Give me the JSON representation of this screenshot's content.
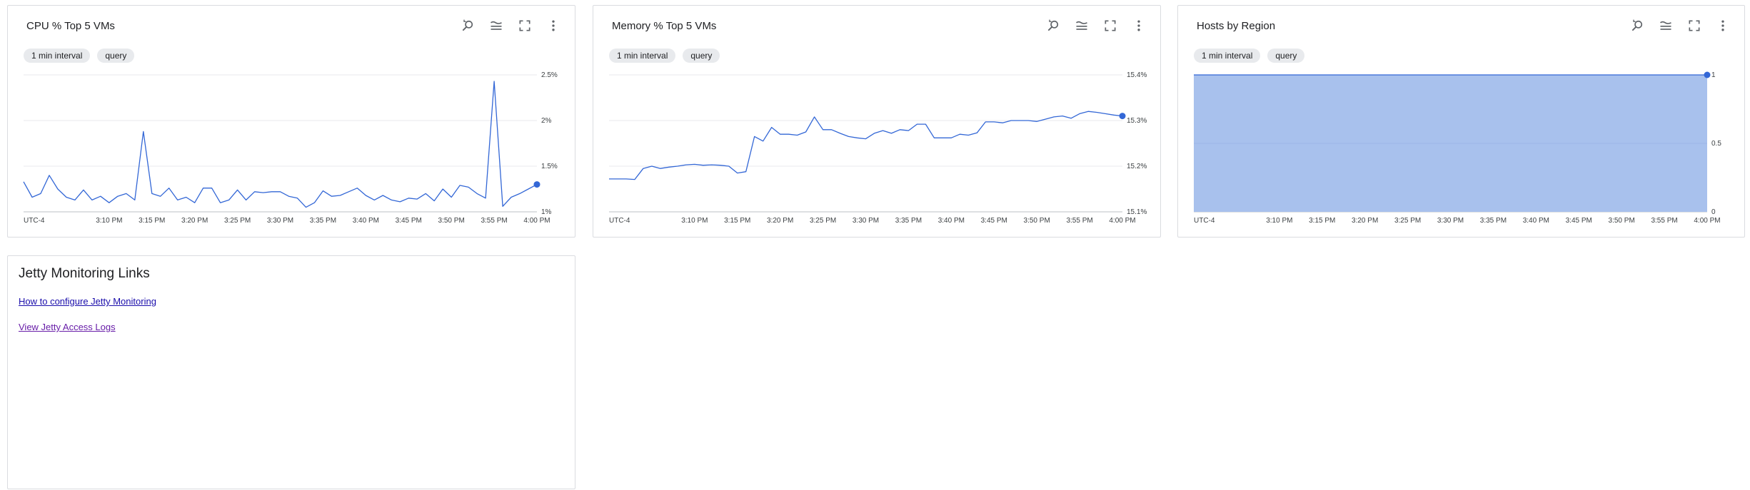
{
  "colors": {
    "line": "#3367d6",
    "area_fill": "#a8c1ed",
    "grid": "#e8eaed",
    "link_visited": "#681da8",
    "link": "#1a0dab"
  },
  "icons": [
    "zoom-reset-icon",
    "legend-icon",
    "fullscreen-icon",
    "more-vert-icon"
  ],
  "x_tick_labels": [
    "3:10 PM",
    "3:15 PM",
    "3:20 PM",
    "3:25 PM",
    "3:30 PM",
    "3:35 PM",
    "3:40 PM",
    "3:45 PM",
    "3:50 PM",
    "3:55 PM",
    "4:00 PM"
  ],
  "charts": [
    {
      "title": "CPU % Top 5 VMs",
      "chips": [
        "1 min interval",
        "query"
      ],
      "timezone": "UTC-4"
    },
    {
      "title": "Memory % Top 5 VMs",
      "chips": [
        "1 min interval",
        "query"
      ],
      "timezone": "UTC-4"
    },
    {
      "title": "Hosts by Region",
      "chips": [
        "1 min interval",
        "query"
      ],
      "timezone": "UTC-4"
    }
  ],
  "chart_data": [
    {
      "type": "line",
      "title": "CPU % Top 5 VMs",
      "x_start": "3:00 PM",
      "x_end": "4:00 PM",
      "x_ticks": [
        "3:10 PM",
        "3:15 PM",
        "3:20 PM",
        "3:25 PM",
        "3:30 PM",
        "3:35 PM",
        "3:40 PM",
        "3:45 PM",
        "3:50 PM",
        "3:55 PM",
        "4:00 PM"
      ],
      "y_ticks": [
        "1%",
        "1.5%",
        "2%",
        "2.5%"
      ],
      "ylim": [
        1,
        2.5
      ],
      "grid": true,
      "series": [
        {
          "values": [
            1.33,
            1.16,
            1.2,
            1.4,
            1.25,
            1.16,
            1.13,
            1.24,
            1.13,
            1.17,
            1.1,
            1.17,
            1.2,
            1.13,
            1.88,
            1.2,
            1.17,
            1.26,
            1.13,
            1.16,
            1.1,
            1.26,
            1.26,
            1.1,
            1.13,
            1.24,
            1.13,
            1.22,
            1.21,
            1.22,
            1.22,
            1.17,
            1.15,
            1.05,
            1.1,
            1.23,
            1.17,
            1.18,
            1.22,
            1.26,
            1.18,
            1.13,
            1.18,
            1.13,
            1.11,
            1.15,
            1.14,
            1.2,
            1.12,
            1.25,
            1.16,
            1.29,
            1.27,
            1.2,
            1.15,
            2.43,
            1.06,
            1.16,
            1.2,
            1.25,
            1.3
          ]
        }
      ]
    },
    {
      "type": "line",
      "title": "Memory % Top 5 VMs",
      "x_start": "3:00 PM",
      "x_end": "4:00 PM",
      "x_ticks": [
        "3:10 PM",
        "3:15 PM",
        "3:20 PM",
        "3:25 PM",
        "3:30 PM",
        "3:35 PM",
        "3:40 PM",
        "3:45 PM",
        "3:50 PM",
        "3:55 PM",
        "4:00 PM"
      ],
      "y_ticks": [
        "15.1%",
        "15.2%",
        "15.3%",
        "15.4%"
      ],
      "ylim": [
        15.1,
        15.4
      ],
      "grid": true,
      "series": [
        {
          "values": [
            15.172,
            15.172,
            15.172,
            15.171,
            15.195,
            15.2,
            15.195,
            15.198,
            15.2,
            15.203,
            15.204,
            15.202,
            15.203,
            15.202,
            15.2,
            15.185,
            15.188,
            15.265,
            15.255,
            15.285,
            15.27,
            15.27,
            15.268,
            15.275,
            15.308,
            15.28,
            15.28,
            15.272,
            15.265,
            15.262,
            15.26,
            15.272,
            15.278,
            15.272,
            15.28,
            15.278,
            15.292,
            15.292,
            15.262,
            15.262,
            15.262,
            15.27,
            15.268,
            15.273,
            15.297,
            15.297,
            15.295,
            15.3,
            15.3,
            15.3,
            15.298,
            15.303,
            15.308,
            15.31,
            15.305,
            15.315,
            15.32,
            15.318,
            15.315,
            15.312,
            15.31
          ]
        }
      ]
    },
    {
      "type": "area",
      "title": "Hosts by Region",
      "x_start": "3:00 PM",
      "x_end": "4:00 PM",
      "x_ticks": [
        "3:10 PM",
        "3:15 PM",
        "3:20 PM",
        "3:25 PM",
        "3:30 PM",
        "3:35 PM",
        "3:40 PM",
        "3:45 PM",
        "3:50 PM",
        "3:55 PM",
        "4:00 PM"
      ],
      "y_ticks": [
        "0",
        "0.5",
        "1"
      ],
      "ylim": [
        0,
        1
      ],
      "grid": true,
      "series": [
        {
          "values": [
            1,
            1,
            1,
            1,
            1,
            1,
            1,
            1,
            1,
            1,
            1,
            1,
            1,
            1,
            1,
            1,
            1,
            1,
            1,
            1,
            1,
            1,
            1,
            1,
            1,
            1,
            1,
            1,
            1,
            1,
            1,
            1,
            1,
            1,
            1,
            1,
            1,
            1,
            1,
            1,
            1,
            1,
            1,
            1,
            1,
            1,
            1,
            1,
            1,
            1,
            1,
            1,
            1,
            1,
            1,
            1,
            1,
            1,
            1,
            1,
            1
          ]
        }
      ]
    }
  ],
  "links_card": {
    "title": "Jetty Monitoring Links",
    "links": [
      "How to configure Jetty Monitoring",
      "View Jetty Access Logs"
    ]
  }
}
